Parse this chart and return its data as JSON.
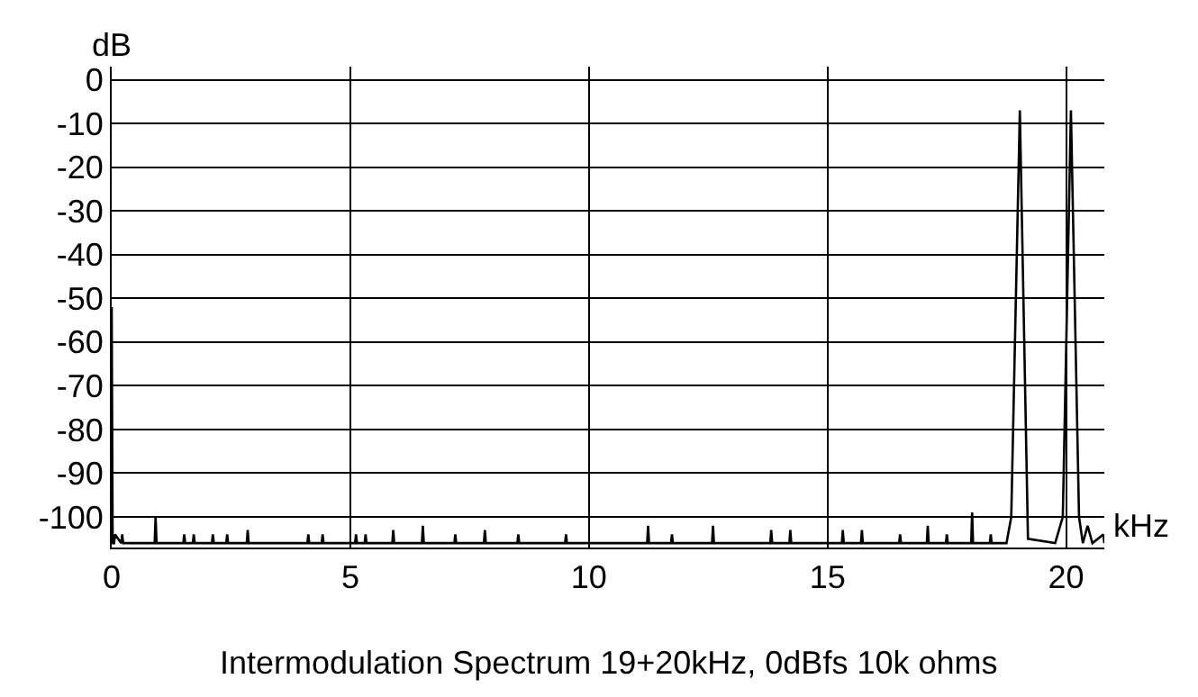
{
  "chart_data": {
    "type": "line",
    "xlabel": "kHz",
    "ylabel": "dB",
    "annotations": [
      "Intermodulation Spectrum 19+20kHz, 0dBfs 10k ohms"
    ],
    "xlim": [
      0,
      20.8
    ],
    "xticks": [
      0,
      5,
      10,
      15,
      20
    ],
    "ylim": [
      -107,
      3
    ],
    "yticks": [
      0,
      -10,
      -20,
      -30,
      -40,
      -50,
      -60,
      -70,
      -80,
      -90,
      -100
    ],
    "grid": true,
    "marker": "none",
    "line_style": "solid",
    "series": [
      {
        "color": "#000000",
        "x": [
          0,
          0.02,
          0.05,
          0.07,
          0.2,
          0.22,
          0.24,
          0.9,
          0.92,
          0.94,
          1.5,
          1.52,
          1.54,
          1.7,
          1.72,
          1.74,
          2.1,
          2.12,
          2.14,
          2.4,
          2.42,
          2.44,
          2.83,
          2.85,
          2.87,
          4.1,
          4.12,
          4.14,
          4.4,
          4.42,
          4.44,
          5.1,
          5.12,
          5.14,
          5.3,
          5.32,
          5.34,
          5.88,
          5.9,
          5.92,
          6.5,
          6.52,
          6.54,
          7.18,
          7.2,
          7.22,
          7.8,
          7.82,
          7.84,
          8.5,
          8.52,
          8.54,
          9.5,
          9.52,
          9.54,
          11.22,
          11.24,
          11.26,
          11.72,
          11.74,
          11.76,
          12.58,
          12.6,
          12.62,
          13.8,
          13.82,
          13.84,
          14.2,
          14.22,
          14.24,
          15.3,
          15.32,
          15.34,
          15.7,
          15.72,
          15.74,
          16.5,
          16.52,
          16.54,
          17.08,
          17.1,
          17.12,
          17.48,
          17.5,
          17.52,
          18.01,
          18.03,
          18.05,
          18.4,
          18.42,
          18.44,
          18.75,
          18.85,
          19.03,
          19.2,
          19.77,
          19.93,
          20.1,
          20.27,
          20.35,
          20.45,
          20.55,
          20.78,
          20.8
        ],
        "values": [
          -52,
          -106,
          -106,
          -104,
          -106,
          -104,
          -106,
          -106,
          -100,
          -106,
          -106,
          -104,
          -106,
          -106,
          -104,
          -106,
          -106,
          -104,
          -106,
          -106,
          -104,
          -106,
          -106,
          -103,
          -106,
          -106,
          -104,
          -106,
          -106,
          -104,
          -106,
          -106,
          -104,
          -106,
          -106,
          -104,
          -106,
          -106,
          -103,
          -106,
          -106,
          -102,
          -106,
          -106,
          -104,
          -106,
          -106,
          -103,
          -106,
          -106,
          -104,
          -106,
          -106,
          -104,
          -106,
          -106,
          -102,
          -106,
          -106,
          -104,
          -106,
          -106,
          -102,
          -106,
          -106,
          -103,
          -106,
          -106,
          -103,
          -106,
          -106,
          -103,
          -106,
          -106,
          -103,
          -106,
          -106,
          -104,
          -106,
          -106,
          -102,
          -106,
          -106,
          -104,
          -106,
          -106,
          -99,
          -106,
          -106,
          -104,
          -106,
          -106,
          -100,
          -7,
          -105,
          -106,
          -100,
          -7,
          -100,
          -106,
          -102,
          -106,
          -104,
          -106
        ]
      }
    ]
  }
}
